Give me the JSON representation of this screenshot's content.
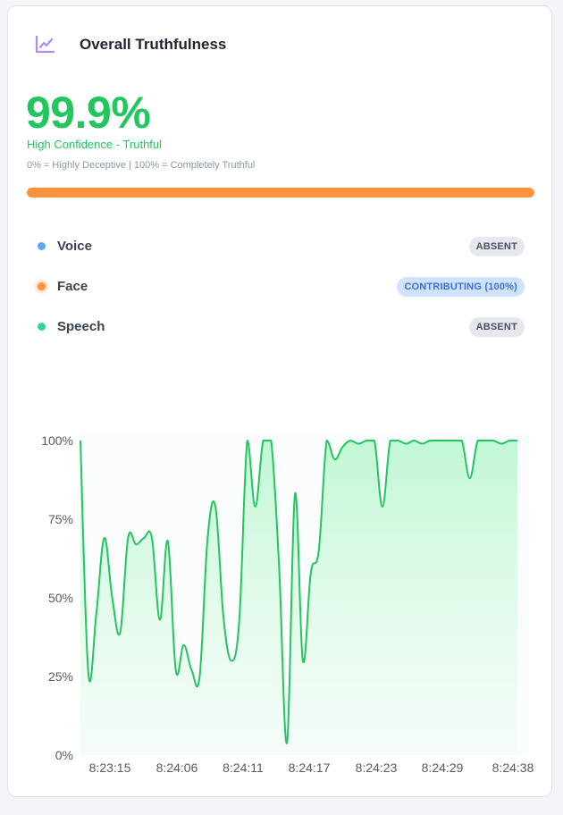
{
  "header": {
    "title": "Overall Truthfulness",
    "icon": "line-chart-icon"
  },
  "score": {
    "value": "99.9%",
    "confidence_label": "High Confidence - Truthful",
    "scale_note": "0% = Highly Deceptive  |  100% = Completely Truthful",
    "progress_fraction": 1.0
  },
  "modalities": [
    {
      "label": "Voice",
      "status": "ABSENT",
      "color": "#60a5fa"
    },
    {
      "label": "Face",
      "status": "CONTRIBUTING (100%)",
      "color": "#fb923c"
    },
    {
      "label": "Speech",
      "status": "ABSENT",
      "color": "#34d399"
    }
  ],
  "colors": {
    "accent_green": "#22c55e",
    "progress_orange": "#fb923c"
  },
  "chart_data": {
    "type": "area",
    "y_ticks": [
      "100%",
      "75%",
      "50%",
      "25%",
      "0%"
    ],
    "ylim": [
      0,
      100
    ],
    "x_ticks": [
      "8:23:15",
      "8:24:06",
      "8:24:11",
      "8:24:17",
      "8:24:23",
      "8:24:29",
      "8:24:38"
    ],
    "series": [
      {
        "color": "#22c55e",
        "values": [
          100,
          26,
          45,
          69,
          50,
          39,
          69,
          67,
          69,
          69,
          43,
          68,
          27,
          35,
          27,
          25,
          69,
          79,
          44,
          30,
          43,
          100,
          79,
          100,
          100,
          60,
          4,
          83,
          30,
          58,
          65,
          100,
          94,
          98,
          100,
          99,
          100,
          100,
          79,
          100,
          100,
          99,
          100,
          99,
          100,
          100,
          100,
          100,
          100,
          88,
          100,
          100,
          100,
          99,
          100,
          100
        ]
      }
    ]
  }
}
